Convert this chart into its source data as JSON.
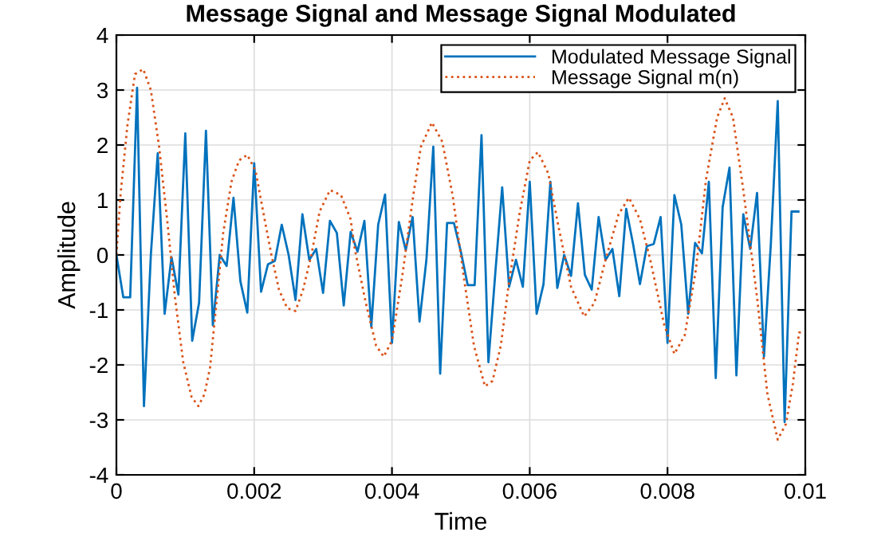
{
  "chart_data": {
    "type": "line",
    "title": "Message Signal and Message Signal Modulated",
    "xlabel": "Time",
    "ylabel": "Amplitude",
    "xlim": [
      0,
      0.01
    ],
    "ylim": [
      -4,
      4
    ],
    "xticks": [
      0,
      0.002,
      0.004,
      0.006,
      0.008,
      0.01
    ],
    "yticks": [
      -4,
      -3,
      -2,
      -1,
      0,
      1,
      2,
      3,
      4
    ],
    "grid": true,
    "legend": "top right",
    "series": [
      {
        "name": "Modulated Message Signal",
        "color": "#0072bd",
        "line_style": "solid",
        "x": [
          0,
          0.0001,
          0.0002,
          0.0003,
          0.0004,
          0.0005,
          0.0006,
          0.0007,
          0.0008,
          0.0009,
          0.001,
          0.0011,
          0.0012,
          0.0013,
          0.0014,
          0.0015,
          0.0016,
          0.0017,
          0.0018,
          0.0019,
          0.002,
          0.0021,
          0.0022,
          0.0023,
          0.0024,
          0.0025,
          0.0026,
          0.0027,
          0.0028,
          0.0029,
          0.003,
          0.0031,
          0.0032,
          0.0033,
          0.0034,
          0.0035,
          0.0036,
          0.0037,
          0.0038,
          0.0039,
          0.004,
          0.0041,
          0.0042,
          0.0043,
          0.0044,
          0.0045,
          0.0046,
          0.0047,
          0.0048,
          0.0049,
          0.005,
          0.0051,
          0.0052,
          0.0053,
          0.0054,
          0.0055,
          0.0056,
          0.0057,
          0.0058,
          0.0059,
          0.006,
          0.0061,
          0.0062,
          0.0063,
          0.0064,
          0.0065,
          0.0066,
          0.0067,
          0.0068,
          0.0069,
          0.007,
          0.0071,
          0.0072,
          0.0073,
          0.0074,
          0.0075,
          0.0076,
          0.0077,
          0.0078,
          0.0079,
          0.008,
          0.0081,
          0.0082,
          0.0083,
          0.0084,
          0.0085,
          0.0086,
          0.0087,
          0.0088,
          0.0089,
          0.009,
          0.0091,
          0.0092,
          0.0093,
          0.0094,
          0.0095,
          0.0096,
          0.0097,
          0.0098,
          0.0099
        ],
        "values": [
          0,
          -0.77,
          -0.77,
          3.04,
          -2.75,
          0,
          1.85,
          -1.07,
          -0.04,
          -0.72,
          2.21,
          -1.56,
          -0.87,
          2.26,
          -1.28,
          0,
          -0.2,
          1.04,
          -0.48,
          -1.05,
          1.67,
          -0.67,
          -0.17,
          -0.11,
          0.55,
          0,
          -0.82,
          0.74,
          -0.09,
          0.11,
          -0.69,
          0.62,
          0.4,
          -0.92,
          0.42,
          0.06,
          0.62,
          -1.31,
          0.55,
          1.1,
          -1.6,
          0.6,
          0.09,
          0.69,
          -1.21,
          -0.09,
          1.97,
          -2.16,
          0.58,
          0.58,
          0.06,
          -0.55,
          -0.55,
          2.18,
          -1.95,
          -0.33,
          1.23,
          -0.58,
          -0.09,
          -0.58,
          1.33,
          -1.07,
          -0.53,
          1.33,
          -0.6,
          0,
          -0.38,
          0.94,
          -0.36,
          -0.63,
          0.69,
          -0.09,
          0.11,
          -0.75,
          0.84,
          0.2,
          -0.53,
          0.16,
          0.2,
          0.69,
          -1.6,
          1.09,
          0.55,
          -1.07,
          0.22,
          0.03,
          1.33,
          -2.24,
          0.87,
          1.59,
          -2.19,
          0.74,
          0.11,
          1.13,
          -1.85,
          0.2,
          2.8,
          -3.04,
          0.79,
          0.79
        ]
      },
      {
        "name": "Message Signal m(n)",
        "color": "#d95319",
        "line_style": "dotted",
        "x": [
          0,
          6e-05,
          0.00016,
          0.00027,
          0.00039,
          0.0005,
          0.00062,
          0.00074,
          0.00085,
          0.00097,
          0.00109,
          0.00119,
          0.00128,
          0.00136,
          0.00146,
          0.00155,
          0.00167,
          0.00178,
          0.0019,
          0.00202,
          0.00213,
          0.00225,
          0.00236,
          0.00248,
          0.0026,
          0.00271,
          0.00283,
          0.00295,
          0.0031,
          0.00326,
          0.0034,
          0.00346,
          0.00362,
          0.00377,
          0.00388,
          0.004,
          0.00415,
          0.00431,
          0.00442,
          0.00458,
          0.00473,
          0.00488,
          0.00504,
          0.00519,
          0.00535,
          0.00546,
          0.00558,
          0.00569,
          0.00585,
          0.006,
          0.00612,
          0.00627,
          0.00642,
          0.0066,
          0.00679,
          0.00694,
          0.0071,
          0.00729,
          0.00744,
          0.0076,
          0.00775,
          0.00795,
          0.0081,
          0.00825,
          0.00841,
          0.00856,
          0.00872,
          0.00883,
          0.00895,
          0.0091,
          0.0093,
          0.00945,
          0.0096,
          0.00972,
          0.00982,
          0.00991,
          0.00998
        ],
        "values": [
          0,
          1.1,
          2.36,
          3.29,
          3.38,
          3.0,
          1.97,
          0.6,
          -0.77,
          -1.95,
          -2.58,
          -2.75,
          -2.53,
          -2.04,
          -0.77,
          0.4,
          1.33,
          1.72,
          1.82,
          1.53,
          0.79,
          0,
          -0.63,
          -0.97,
          -1.02,
          -0.63,
          0,
          0.79,
          1.18,
          1.09,
          0.65,
          0.11,
          -0.87,
          -1.65,
          -1.85,
          -1.56,
          -0.38,
          1.09,
          1.97,
          2.41,
          2.06,
          1.09,
          -0.38,
          -1.65,
          -2.39,
          -2.29,
          -1.65,
          -0.58,
          0.74,
          1.72,
          1.87,
          1.48,
          0.5,
          -0.58,
          -1.12,
          -0.87,
          -0.09,
          0.74,
          1.04,
          0.65,
          -0.09,
          -1.26,
          -1.8,
          -1.46,
          -0.28,
          1.38,
          2.5,
          2.85,
          2.5,
          1.18,
          -0.77,
          -2.53,
          -3.36,
          -3.07,
          -2.34,
          -1.41,
          -1.4
        ]
      }
    ]
  }
}
